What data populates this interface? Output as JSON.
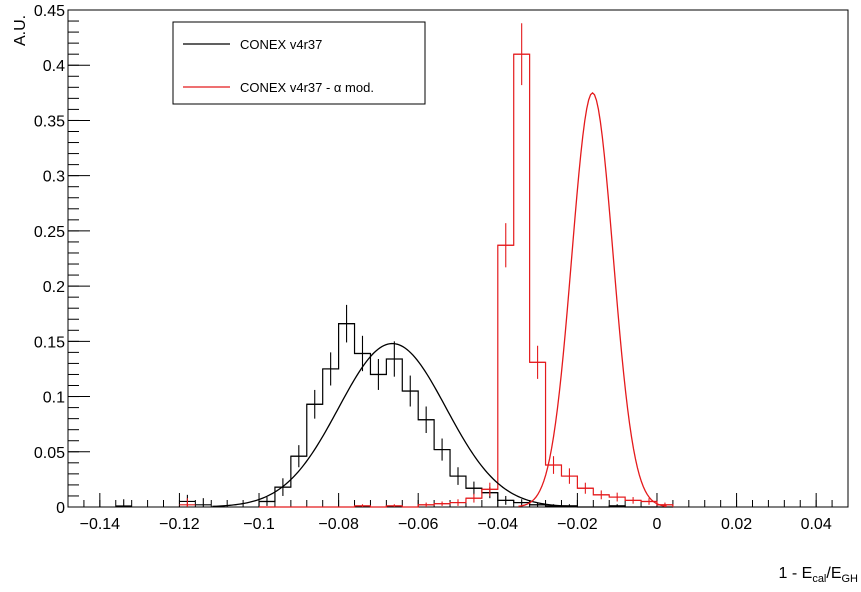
{
  "chart_data": {
    "type": "histogram",
    "xlabel": {
      "base": "1 - E",
      "sub1": "cal",
      "mid": "/E",
      "sub2": "GH"
    },
    "ylabel": "A.U.",
    "xlim": [
      -0.148,
      0.048
    ],
    "ylim": [
      0,
      0.45
    ],
    "xticks": [
      -0.14,
      -0.12,
      -0.1,
      -0.08,
      -0.06,
      -0.04,
      -0.02,
      0,
      0.02,
      0.04
    ],
    "xtick_labels": [
      "−0.14",
      "−0.12",
      "−0.1",
      "−0.08",
      "−0.06",
      "−0.04",
      "−0.02",
      "0",
      "0.02",
      "0.04"
    ],
    "yticks": [
      0,
      0.05,
      0.1,
      0.15,
      0.2,
      0.25,
      0.3,
      0.35,
      0.4,
      0.45
    ],
    "ytick_labels": [
      "0",
      "0.05",
      "0.1",
      "0.15",
      "0.2",
      "0.25",
      "0.3",
      "0.35",
      "0.4",
      "0.45"
    ],
    "bin_width": 0.004,
    "bin_start": -0.1,
    "legend_position": "top-left",
    "series": [
      {
        "name": "CONEX v4r37",
        "color": "#000000",
        "values": [
          0.005,
          0.018,
          0.046,
          0.093,
          0.125,
          0.166,
          0.139,
          0.12,
          0.134,
          0.105,
          0.079,
          0.052,
          0.028,
          0.017,
          0.013,
          0.006,
          0.004,
          0.002,
          0.001,
          0.001,
          0.0,
          0.0,
          0.001,
          0.0,
          0.0,
          0.0
        ],
        "errors": [
          0.004,
          0.008,
          0.01,
          0.013,
          0.015,
          0.017,
          0.016,
          0.014,
          0.016,
          0.014,
          0.012,
          0.01,
          0.008,
          0.006,
          0.005,
          0.004,
          0.003,
          0.002,
          0.0015,
          0.0015,
          0,
          0,
          0.0015,
          0,
          0,
          0
        ],
        "low_bins": [
          {
            "x": -0.134,
            "value": 0.001
          },
          {
            "x": -0.118,
            "value": 0.005
          },
          {
            "x": -0.114,
            "value": 0.002
          }
        ],
        "fit": {
          "type": "gaussian",
          "amplitude": 0.148,
          "mean": -0.0665,
          "sigma": 0.0135,
          "color": "#000000"
        }
      },
      {
        "name": "CONEX v4r37 - α mod.",
        "color": "#e41a1c",
        "values": [
          0.0,
          0.0,
          0.0,
          0.0,
          0.0,
          0.0,
          0.001,
          0.0,
          0.001,
          0.0,
          0.002,
          0.003,
          0.004,
          0.008,
          0.016,
          0.237,
          0.41,
          0.131,
          0.038,
          0.028,
          0.017,
          0.011,
          0.009,
          0.006,
          0.005,
          0.002
        ],
        "errors": [
          0,
          0,
          0,
          0,
          0,
          0,
          0.0015,
          0,
          0.0015,
          0,
          0.002,
          0.002,
          0.003,
          0.004,
          0.006,
          0.02,
          0.028,
          0.015,
          0.008,
          0.007,
          0.005,
          0.004,
          0.004,
          0.003,
          0.003,
          0.002
        ],
        "low_bins": [
          {
            "x": -0.118,
            "value": 0.002
          }
        ],
        "fit": {
          "type": "gaussian",
          "amplitude": 0.375,
          "mean": -0.0162,
          "sigma": 0.0052,
          "color": "#e41a1c"
        }
      }
    ]
  }
}
